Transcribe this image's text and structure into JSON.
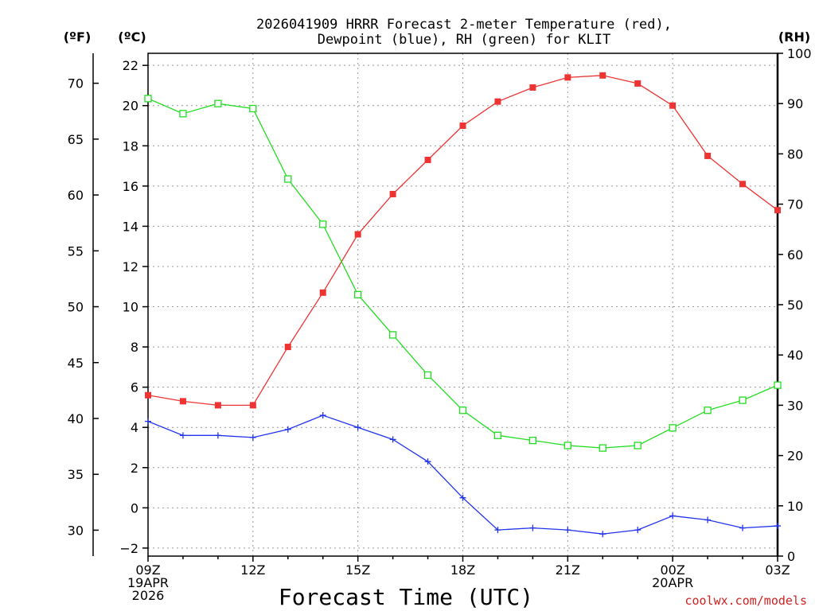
{
  "chart_data": {
    "type": "line",
    "title_line1": "2026041909 HRRR Forecast 2-meter Temperature (red),",
    "title_line2": "Dewpoint (blue), RH (green) for KLIT",
    "xlabel": "Forecast Time (UTC)",
    "left_unit_f": "(ºF)",
    "left_unit_c": "(ºC)",
    "right_unit": "(RH)",
    "credit": "coolwx.com/models",
    "colors": {
      "temperature": "#ee3333",
      "dewpoint": "#2233ee",
      "rh": "#22dd22"
    },
    "x_hours": [
      0,
      1,
      2,
      3,
      4,
      5,
      6,
      7,
      8,
      9,
      10,
      11,
      12,
      13,
      14,
      15,
      16,
      17,
      18
    ],
    "x_tick_labels": [
      {
        "hour": 0,
        "lines": [
          "09Z",
          "19APR",
          "2026"
        ]
      },
      {
        "hour": 3,
        "lines": [
          "12Z"
        ]
      },
      {
        "hour": 6,
        "lines": [
          "15Z"
        ]
      },
      {
        "hour": 9,
        "lines": [
          "18Z"
        ]
      },
      {
        "hour": 12,
        "lines": [
          "21Z"
        ]
      },
      {
        "hour": 15,
        "lines": [
          "00Z",
          "20APR"
        ]
      },
      {
        "hour": 18,
        "lines": [
          "03Z"
        ]
      }
    ],
    "c_ticks": [
      -2,
      0,
      2,
      4,
      6,
      8,
      10,
      12,
      14,
      16,
      18,
      20,
      22
    ],
    "f_ticks": [
      30,
      35,
      40,
      45,
      50,
      55,
      60,
      65,
      70
    ],
    "rh_ticks": [
      0,
      10,
      20,
      30,
      40,
      50,
      60,
      70,
      80,
      90,
      100
    ],
    "ylim_c": [
      -2.4,
      22.6
    ],
    "ylim_rh": [
      0,
      100
    ],
    "series": [
      {
        "name": "Temperature",
        "key": "temperature",
        "units": "C",
        "values": [
          5.6,
          5.3,
          5.1,
          5.1,
          8.0,
          10.7,
          13.6,
          15.6,
          17.3,
          19.0,
          20.2,
          20.9,
          21.4,
          21.5,
          21.1,
          20.0,
          17.5,
          16.1,
          14.8
        ]
      },
      {
        "name": "Dewpoint",
        "key": "dewpoint",
        "units": "C",
        "values": [
          4.3,
          3.6,
          3.6,
          3.5,
          3.9,
          4.6,
          4.0,
          3.4,
          2.3,
          0.5,
          -1.1,
          -1.0,
          -1.1,
          -1.3,
          -1.1,
          -0.4,
          -0.6,
          -1.0,
          -0.9
        ]
      },
      {
        "name": "RH",
        "key": "rh",
        "units": "%",
        "values": [
          91,
          88,
          90,
          89,
          75,
          66,
          52,
          44,
          36,
          29,
          24,
          23,
          22,
          21.5,
          22,
          25.5,
          29,
          31,
          34
        ]
      }
    ]
  }
}
